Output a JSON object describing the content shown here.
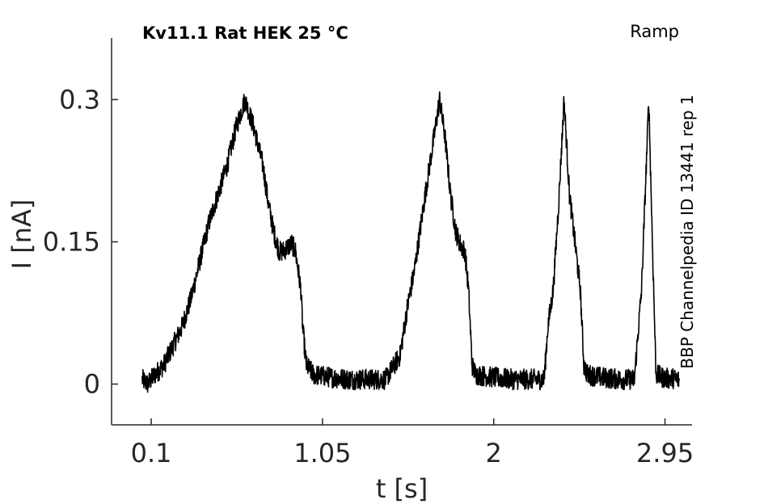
{
  "chart_data": {
    "type": "line",
    "title": "Kv11.1  Rat  HEK  25 °C",
    "protocol_label": "Ramp",
    "side_label": "BBP Channelpedia ID 13441 rep 1",
    "xlabel": "t [s]",
    "ylabel": "I [nA]",
    "xlim": [
      -0.12,
      3.1
    ],
    "ylim": [
      -0.043,
      0.365
    ],
    "x_ticks": [
      0.1,
      1.05,
      2,
      2.95
    ],
    "x_tick_labels": [
      "0.1",
      "1.05",
      "2",
      "2.95"
    ],
    "y_ticks": [
      0,
      0.15,
      0.3
    ],
    "y_tick_labels": [
      "0",
      "0.15",
      "0.3"
    ],
    "grid": false,
    "legend": "none",
    "line_color": "#000000",
    "axis_color": "#262626",
    "series": [
      {
        "x": [
          0.05,
          0.08,
          0.12,
          0.17,
          0.22,
          0.27,
          0.32,
          0.37,
          0.42,
          0.47,
          0.52,
          0.57,
          0.62,
          0.67,
          0.72,
          0.75,
          0.78,
          0.81,
          0.83,
          0.86,
          0.88,
          0.9,
          0.93,
          0.94,
          0.96,
          1.0,
          1.1,
          1.2,
          1.3,
          1.4,
          1.48,
          1.52,
          1.56,
          1.62,
          1.66,
          1.7,
          1.73,
          1.76,
          1.79,
          1.82,
          1.84,
          1.86,
          1.88,
          1.9,
          2.0,
          2.1,
          2.2,
          2.28,
          2.3,
          2.33,
          2.36,
          2.39,
          2.42,
          2.45,
          2.48,
          2.5,
          2.52,
          2.6,
          2.7,
          2.78,
          2.82,
          2.84,
          2.86,
          2.88,
          2.9,
          2.95,
          3.0,
          3.03
        ],
        "y": [
          0.005,
          0.0,
          0.01,
          0.02,
          0.04,
          0.06,
          0.09,
          0.13,
          0.17,
          0.2,
          0.23,
          0.27,
          0.3,
          0.27,
          0.23,
          0.19,
          0.16,
          0.14,
          0.14,
          0.145,
          0.148,
          0.14,
          0.1,
          0.06,
          0.02,
          0.01,
          0.007,
          0.005,
          0.005,
          0.005,
          0.03,
          0.08,
          0.12,
          0.2,
          0.25,
          0.3,
          0.26,
          0.2,
          0.16,
          0.145,
          0.14,
          0.1,
          0.02,
          0.01,
          0.007,
          0.005,
          0.005,
          0.005,
          0.06,
          0.1,
          0.19,
          0.3,
          0.2,
          0.15,
          0.1,
          0.02,
          0.01,
          0.007,
          0.005,
          0.005,
          0.1,
          0.2,
          0.3,
          0.15,
          0.01,
          0.006,
          0.006,
          0.004
        ]
      }
    ]
  }
}
